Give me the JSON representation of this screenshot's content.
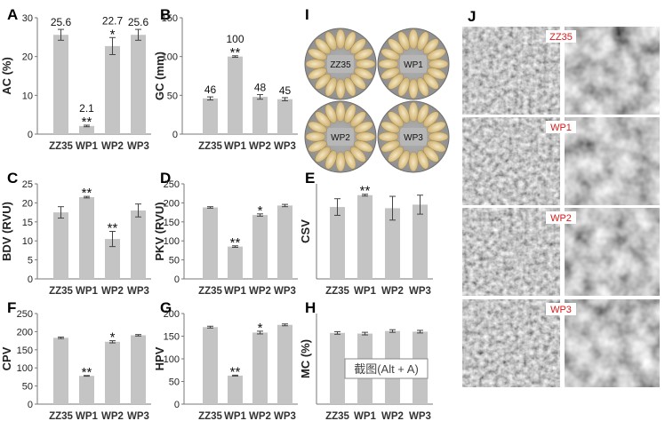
{
  "colors": {
    "bar": "#c4c4c4",
    "axis": "#777777",
    "sem_label": "#e01919",
    "sem_bg": "#5a5a5a"
  },
  "chart_data": [
    {
      "letter": "A",
      "type": "bar",
      "ylabel": "AC (%)",
      "categories": [
        "ZZ35",
        "WP1",
        "WP2",
        "WP3"
      ],
      "values": [
        25.6,
        2.1,
        22.7,
        25.6
      ],
      "errors": [
        1.4,
        0.2,
        2.2,
        1.4
      ],
      "value_labels": [
        "25.6",
        "2.1",
        "22.7",
        "25.6"
      ],
      "sig": [
        "",
        "**",
        "*",
        ""
      ],
      "ylim": [
        0,
        30
      ],
      "yticks": [
        0,
        10,
        20,
        30
      ],
      "ytick_labels": [
        "0",
        "10",
        "20",
        "30"
      ]
    },
    {
      "letter": "B",
      "type": "bar",
      "ylabel": "GC (mm)",
      "categories": [
        "ZZ35",
        "WP1",
        "WP2",
        "WP3"
      ],
      "values": [
        46,
        100,
        48,
        45
      ],
      "errors": [
        2,
        1,
        3,
        2
      ],
      "value_labels": [
        "46",
        "100",
        "48",
        "45"
      ],
      "sig": [
        "",
        "**",
        "",
        ""
      ],
      "ylim": [
        0,
        150
      ],
      "yticks": [
        0,
        50,
        100,
        150
      ],
      "ytick_labels": [
        "0",
        "50",
        "100",
        "150"
      ]
    },
    {
      "letter": "C",
      "type": "bar",
      "ylabel": "BDV (RVU)",
      "categories": [
        "ZZ35",
        "WP1",
        "WP2",
        "WP3"
      ],
      "values": [
        17.5,
        21.5,
        10.5,
        18
      ],
      "errors": [
        1.5,
        0.2,
        2.0,
        1.7
      ],
      "sig": [
        "",
        "**",
        "**",
        ""
      ],
      "ylim": [
        0,
        25
      ],
      "yticks": [
        0,
        5,
        10,
        15,
        20,
        25
      ],
      "ytick_labels": [
        "0",
        "5",
        "10",
        "15",
        "20",
        "25"
      ]
    },
    {
      "letter": "D",
      "type": "bar",
      "ylabel": "PKV (RVU)",
      "categories": [
        "ZZ35",
        "WP1",
        "WP2",
        "WP3"
      ],
      "values": [
        188,
        85,
        168,
        193
      ],
      "errors": [
        2,
        2,
        3,
        3
      ],
      "sig": [
        "",
        "**",
        "*",
        ""
      ],
      "ylim": [
        0,
        250
      ],
      "yticks": [
        0,
        50,
        100,
        150,
        200,
        250
      ],
      "ytick_labels": [
        "0",
        "50",
        "100",
        "150",
        "200",
        "250"
      ]
    },
    {
      "letter": "E",
      "type": "bar",
      "ylabel": "CSV",
      "categories": [
        "ZZ35",
        "WP1",
        "WP2",
        "WP3"
      ],
      "values": [
        12.1,
        14.1,
        11.9,
        12.5
      ],
      "errors": [
        1.4,
        0.15,
        2.0,
        1.6
      ],
      "sig": [
        "",
        "**",
        "",
        ""
      ],
      "ylim": [
        0,
        16
      ],
      "yticks": [],
      "ytick_labels": []
    },
    {
      "letter": "F",
      "type": "bar",
      "ylabel": "CPV",
      "categories": [
        "ZZ35",
        "WP1",
        "WP2",
        "WP3"
      ],
      "values": [
        183,
        78,
        172,
        190
      ],
      "errors": [
        2,
        1,
        3,
        2
      ],
      "sig": [
        "",
        "**",
        "*",
        ""
      ],
      "ylim": [
        0,
        250
      ],
      "yticks": [
        0,
        50,
        100,
        150,
        200,
        250
      ],
      "ytick_labels": [
        "0",
        "50",
        "100",
        "150",
        "200",
        "250"
      ]
    },
    {
      "letter": "G",
      "type": "bar",
      "ylabel": "HPV",
      "categories": [
        "ZZ35",
        "WP1",
        "WP2",
        "WP3"
      ],
      "values": [
        170,
        63,
        158,
        175
      ],
      "errors": [
        2,
        1,
        3,
        2
      ],
      "sig": [
        "",
        "**",
        "*",
        ""
      ],
      "ylim": [
        0,
        200
      ],
      "yticks": [
        0,
        50,
        100,
        150,
        200
      ],
      "ytick_labels": [
        "0",
        "50",
        "100",
        "150",
        "200"
      ]
    },
    {
      "letter": "H",
      "type": "bar",
      "ylabel": "MC (%)",
      "categories": [
        "ZZ35",
        "WP1",
        "WP2",
        "WP3"
      ],
      "values": [
        11.0,
        10.9,
        11.3,
        11.2
      ],
      "errors": [
        0.2,
        0.2,
        0.2,
        0.2
      ],
      "sig": [
        "",
        "",
        "",
        ""
      ],
      "ylim": [
        0,
        14
      ],
      "yticks": [],
      "ytick_labels": []
    }
  ],
  "panel_i": {
    "letter": "I",
    "dish_labels": [
      "ZZ35",
      "WP1",
      "WP2",
      "WP3"
    ]
  },
  "panel_j": {
    "letter": "J",
    "rows": [
      "ZZ35",
      "WP1",
      "WP2",
      "WP3"
    ]
  },
  "overlay": {
    "text": "截图(Alt + A)"
  }
}
